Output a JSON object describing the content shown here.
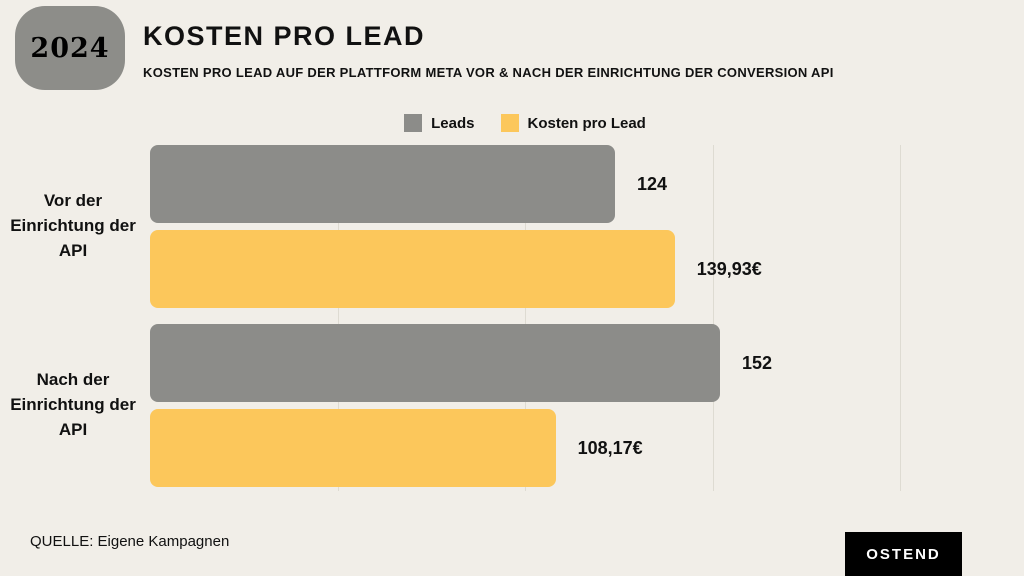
{
  "badge": {
    "year": "2024"
  },
  "header": {
    "title": "KOSTEN PRO LEAD",
    "subtitle": "KOSTEN PRO LEAD AUF DER PLATTFORM META VOR & NACH DER EINRICHTUNG DER CONVERSION API"
  },
  "chart_data": {
    "type": "bar",
    "orientation": "horizontal",
    "title": "KOSTEN PRO LEAD",
    "categories": [
      "Vor der Einrichtung der API",
      "Nach der Einrichtung der API"
    ],
    "series": [
      {
        "name": "Leads",
        "color": "#8C8C89",
        "values": [
          124,
          152
        ],
        "display": [
          "124",
          "152"
        ]
      },
      {
        "name": "Kosten pro Lead",
        "color": "#FCC75B",
        "values": [
          139.93,
          108.17
        ],
        "display": [
          "139,93€",
          "108,17€"
        ]
      }
    ],
    "xlim": [
      0,
      200
    ],
    "gridlines": [
      50,
      100,
      150,
      200
    ],
    "grid": true,
    "legend_position": "top"
  },
  "footer": {
    "source": "QUELLE: Eigene Kampagnen",
    "brand": "OSTEND"
  },
  "colors": {
    "background": "#F1EEE8",
    "badge": "#8D8D89",
    "gridline": "#DEDBD2",
    "text": "#111111",
    "brand_bg": "#000000",
    "brand_text": "#FFFFFF"
  }
}
